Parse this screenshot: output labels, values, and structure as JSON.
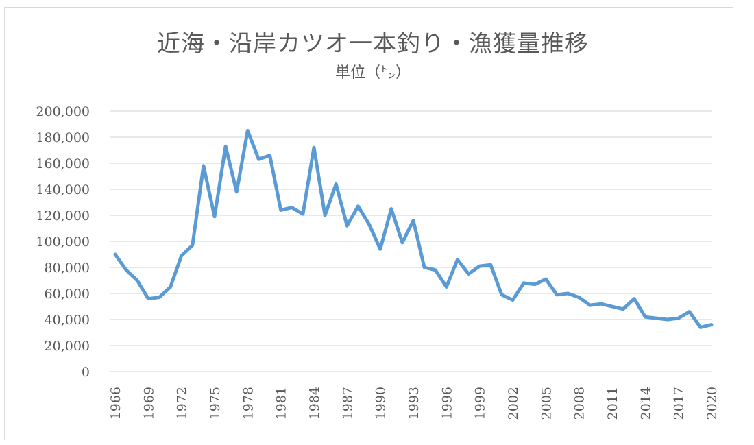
{
  "chart_data": {
    "type": "line",
    "title": "近海・沿岸カツオ一本釣り・漁獲量推移",
    "subtitle": "単位（㌧）",
    "xlabel": "",
    "ylabel": "",
    "ylim": [
      0,
      200000
    ],
    "y_ticks": [
      "0",
      "20,000",
      "40,000",
      "60,000",
      "80,000",
      "100,000",
      "120,000",
      "140,000",
      "160,000",
      "180,000",
      "200,000"
    ],
    "x_tick_labels": [
      "1966",
      "1969",
      "1972",
      "1975",
      "1978",
      "1981",
      "1984",
      "1987",
      "1990",
      "1993",
      "1996",
      "1999",
      "2002",
      "2005",
      "2008",
      "2011",
      "2014",
      "2017",
      "2020"
    ],
    "grid": true,
    "legend": "none",
    "line_color": "#5b9bd5",
    "x": [
      1966,
      1967,
      1968,
      1969,
      1970,
      1971,
      1972,
      1973,
      1974,
      1975,
      1976,
      1977,
      1978,
      1979,
      1980,
      1981,
      1982,
      1983,
      1984,
      1985,
      1986,
      1987,
      1988,
      1989,
      1990,
      1991,
      1992,
      1993,
      1994,
      1995,
      1996,
      1997,
      1998,
      1999,
      2000,
      2001,
      2002,
      2003,
      2004,
      2005,
      2006,
      2007,
      2008,
      2009,
      2010,
      2011,
      2012,
      2013,
      2014,
      2015,
      2016,
      2017,
      2018,
      2019,
      2020
    ],
    "values": [
      90000,
      78000,
      70000,
      56000,
      57000,
      65000,
      89000,
      97000,
      158000,
      119000,
      173000,
      138000,
      185000,
      163000,
      166000,
      124000,
      126000,
      121000,
      172000,
      120000,
      144000,
      112000,
      127000,
      113000,
      94000,
      125000,
      99000,
      116000,
      80000,
      78000,
      65000,
      86000,
      75000,
      81000,
      82000,
      59000,
      55000,
      68000,
      67000,
      71000,
      59000,
      60000,
      57000,
      51000,
      52000,
      50000,
      48000,
      56000,
      42000,
      41000,
      40000,
      41000,
      46000,
      34000,
      36000
    ]
  }
}
